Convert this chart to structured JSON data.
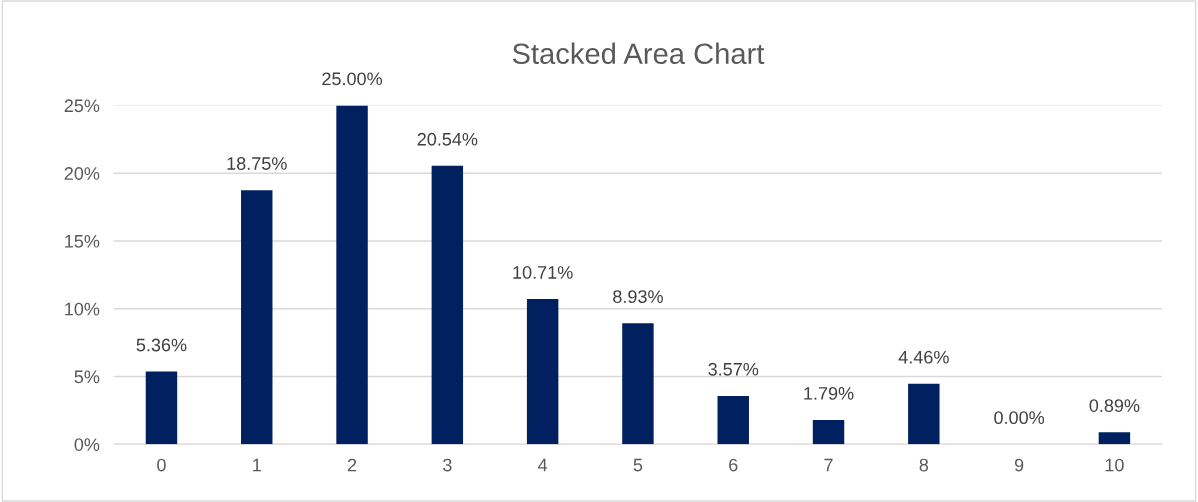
{
  "chart_data": {
    "type": "bar",
    "title": "Stacked Area Chart",
    "categories": [
      "0",
      "1",
      "2",
      "3",
      "4",
      "5",
      "6",
      "7",
      "8",
      "9",
      "10"
    ],
    "values": [
      5.36,
      18.75,
      25.0,
      20.54,
      10.71,
      8.93,
      3.57,
      1.79,
      4.46,
      0.0,
      0.89
    ],
    "value_labels": [
      "5.36%",
      "18.75%",
      "25.00%",
      "20.54%",
      "10.71%",
      "8.93%",
      "3.57%",
      "1.79%",
      "4.46%",
      "0.00%",
      "0.89%"
    ],
    "color": "#002060",
    "ylim": [
      0,
      25
    ],
    "yticks": [
      {
        "value": 0,
        "label": "0%"
      },
      {
        "value": 5,
        "label": "5%"
      },
      {
        "value": 10,
        "label": "10%"
      },
      {
        "value": 15,
        "label": "15%"
      },
      {
        "value": 20,
        "label": "20%"
      },
      {
        "value": 25,
        "label": "25%"
      }
    ],
    "grid": "y",
    "legend": false
  }
}
